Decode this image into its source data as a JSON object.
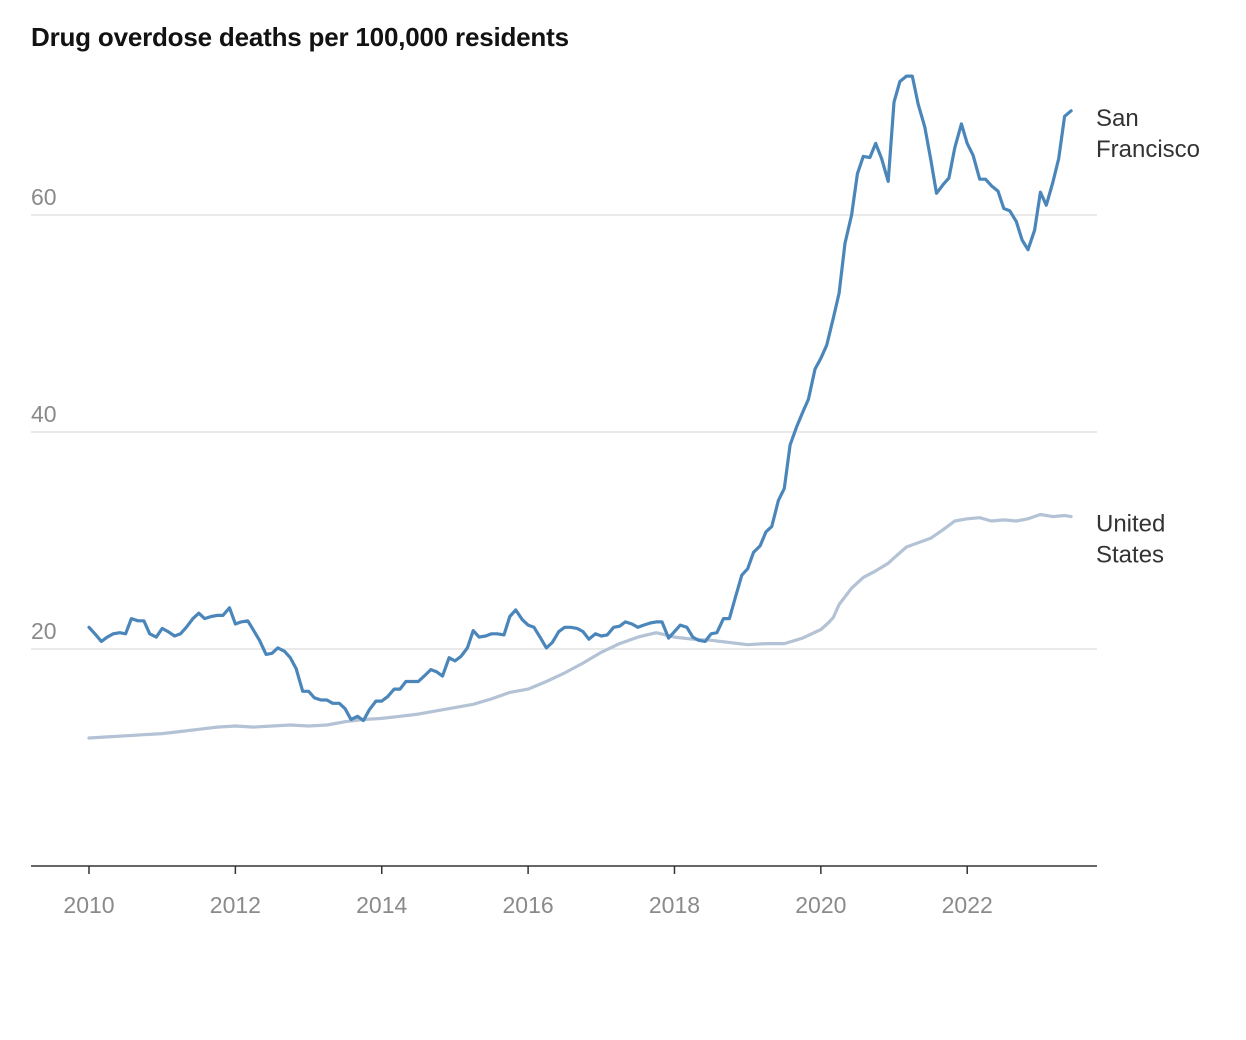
{
  "chart_data": {
    "type": "line",
    "title": "Drug overdose deaths per 100,000 residents",
    "xlabel": "",
    "ylabel": "",
    "xlim": [
      2010,
      2023.5
    ],
    "ylim": [
      0,
      70
    ],
    "x_ticks": [
      2010,
      2012,
      2014,
      2016,
      2018,
      2020,
      2022
    ],
    "y_ticks": [
      20,
      40,
      60
    ],
    "grid": true,
    "series": [
      {
        "name": "San Francisco",
        "label_lines": [
          "San",
          "Francisco"
        ],
        "color": "#4a86ba",
        "points": [
          [
            2010.0,
            22.0
          ],
          [
            2010.08,
            21.4
          ],
          [
            2010.17,
            20.7
          ],
          [
            2010.25,
            21.1
          ],
          [
            2010.33,
            21.4
          ],
          [
            2010.42,
            21.5
          ],
          [
            2010.5,
            21.4
          ],
          [
            2010.58,
            22.8
          ],
          [
            2010.67,
            22.6
          ],
          [
            2010.75,
            22.6
          ],
          [
            2010.83,
            21.4
          ],
          [
            2010.92,
            21.1
          ],
          [
            2011.0,
            21.9
          ],
          [
            2011.08,
            21.6
          ],
          [
            2011.17,
            21.2
          ],
          [
            2011.25,
            21.4
          ],
          [
            2011.33,
            22.0
          ],
          [
            2011.42,
            22.8
          ],
          [
            2011.5,
            23.3
          ],
          [
            2011.58,
            22.8
          ],
          [
            2011.67,
            23.0
          ],
          [
            2011.75,
            23.1
          ],
          [
            2011.83,
            23.1
          ],
          [
            2011.92,
            23.8
          ],
          [
            2012.0,
            22.3
          ],
          [
            2012.08,
            22.5
          ],
          [
            2012.17,
            22.6
          ],
          [
            2012.25,
            21.7
          ],
          [
            2012.33,
            20.8
          ],
          [
            2012.42,
            19.5
          ],
          [
            2012.5,
            19.6
          ],
          [
            2012.58,
            20.1
          ],
          [
            2012.67,
            19.8
          ],
          [
            2012.75,
            19.2
          ],
          [
            2012.83,
            18.2
          ],
          [
            2012.92,
            16.1
          ],
          [
            2013.0,
            16.1
          ],
          [
            2013.08,
            15.5
          ],
          [
            2013.17,
            15.3
          ],
          [
            2013.25,
            15.3
          ],
          [
            2013.33,
            15.0
          ],
          [
            2013.42,
            15.0
          ],
          [
            2013.5,
            14.5
          ],
          [
            2013.58,
            13.5
          ],
          [
            2013.67,
            13.8
          ],
          [
            2013.75,
            13.4
          ],
          [
            2013.83,
            14.4
          ],
          [
            2013.92,
            15.2
          ],
          [
            2014.0,
            15.2
          ],
          [
            2014.08,
            15.6
          ],
          [
            2014.17,
            16.3
          ],
          [
            2014.25,
            16.3
          ],
          [
            2014.33,
            17.0
          ],
          [
            2014.42,
            17.0
          ],
          [
            2014.5,
            17.0
          ],
          [
            2014.58,
            17.5
          ],
          [
            2014.67,
            18.1
          ],
          [
            2014.75,
            17.9
          ],
          [
            2014.83,
            17.5
          ],
          [
            2014.92,
            19.2
          ],
          [
            2015.0,
            18.9
          ],
          [
            2015.08,
            19.3
          ],
          [
            2015.17,
            20.1
          ],
          [
            2015.25,
            21.7
          ],
          [
            2015.33,
            21.1
          ],
          [
            2015.42,
            21.2
          ],
          [
            2015.5,
            21.4
          ],
          [
            2015.58,
            21.4
          ],
          [
            2015.67,
            21.3
          ],
          [
            2015.75,
            23.0
          ],
          [
            2015.83,
            23.6
          ],
          [
            2015.92,
            22.7
          ],
          [
            2016.0,
            22.2
          ],
          [
            2016.08,
            22.0
          ],
          [
            2016.17,
            21.0
          ],
          [
            2016.25,
            20.1
          ],
          [
            2016.33,
            20.6
          ],
          [
            2016.42,
            21.6
          ],
          [
            2016.5,
            22.0
          ],
          [
            2016.58,
            22.0
          ],
          [
            2016.67,
            21.9
          ],
          [
            2016.75,
            21.6
          ],
          [
            2016.83,
            20.9
          ],
          [
            2016.92,
            21.4
          ],
          [
            2017.0,
            21.2
          ],
          [
            2017.08,
            21.3
          ],
          [
            2017.17,
            22.0
          ],
          [
            2017.25,
            22.1
          ],
          [
            2017.33,
            22.5
          ],
          [
            2017.42,
            22.3
          ],
          [
            2017.5,
            22.0
          ],
          [
            2017.58,
            22.2
          ],
          [
            2017.67,
            22.4
          ],
          [
            2017.75,
            22.5
          ],
          [
            2017.83,
            22.5
          ],
          [
            2017.92,
            21.0
          ],
          [
            2018.0,
            21.6
          ],
          [
            2018.08,
            22.2
          ],
          [
            2018.17,
            22.0
          ],
          [
            2018.25,
            21.1
          ],
          [
            2018.33,
            20.8
          ],
          [
            2018.42,
            20.7
          ],
          [
            2018.5,
            21.4
          ],
          [
            2018.58,
            21.5
          ],
          [
            2018.67,
            22.8
          ],
          [
            2018.75,
            22.8
          ],
          [
            2018.83,
            24.7
          ],
          [
            2018.92,
            26.8
          ],
          [
            2019.0,
            27.4
          ],
          [
            2019.08,
            28.9
          ],
          [
            2019.17,
            29.5
          ],
          [
            2019.25,
            30.8
          ],
          [
            2019.33,
            31.3
          ],
          [
            2019.42,
            33.7
          ],
          [
            2019.5,
            34.8
          ],
          [
            2019.58,
            38.8
          ],
          [
            2019.67,
            40.5
          ],
          [
            2019.75,
            41.8
          ],
          [
            2019.83,
            43.0
          ],
          [
            2019.92,
            45.8
          ],
          [
            2020.0,
            46.8
          ],
          [
            2020.08,
            48.0
          ],
          [
            2020.17,
            50.5
          ],
          [
            2020.25,
            52.8
          ],
          [
            2020.33,
            57.4
          ],
          [
            2020.42,
            60.0
          ],
          [
            2020.5,
            63.8
          ],
          [
            2020.58,
            65.4
          ],
          [
            2020.67,
            65.3
          ],
          [
            2020.75,
            66.6
          ],
          [
            2020.83,
            65.2
          ],
          [
            2020.92,
            63.1
          ],
          [
            2021.0,
            70.4
          ],
          [
            2021.08,
            72.3
          ],
          [
            2021.17,
            72.8
          ],
          [
            2021.25,
            72.8
          ],
          [
            2021.33,
            70.2
          ],
          [
            2021.42,
            68.1
          ],
          [
            2021.5,
            65.2
          ],
          [
            2021.58,
            62.0
          ],
          [
            2021.67,
            62.8
          ],
          [
            2021.75,
            63.4
          ],
          [
            2021.83,
            66.2
          ],
          [
            2021.92,
            68.4
          ],
          [
            2022.0,
            66.6
          ],
          [
            2022.08,
            65.5
          ],
          [
            2022.17,
            63.3
          ],
          [
            2022.25,
            63.3
          ],
          [
            2022.33,
            62.7
          ],
          [
            2022.42,
            62.2
          ],
          [
            2022.5,
            60.6
          ],
          [
            2022.58,
            60.4
          ],
          [
            2022.67,
            59.4
          ],
          [
            2022.75,
            57.7
          ],
          [
            2022.83,
            56.8
          ],
          [
            2022.92,
            58.6
          ],
          [
            2023.0,
            62.1
          ],
          [
            2023.08,
            60.9
          ],
          [
            2023.17,
            63.0
          ],
          [
            2023.25,
            65.2
          ],
          [
            2023.33,
            69.1
          ],
          [
            2023.42,
            69.6
          ]
        ]
      },
      {
        "name": "United States",
        "label_lines": [
          "United",
          "States"
        ],
        "color": "#b3c2d4",
        "points": [
          [
            2010.0,
            11.8
          ],
          [
            2010.25,
            11.9
          ],
          [
            2010.5,
            12.0
          ],
          [
            2010.75,
            12.1
          ],
          [
            2011.0,
            12.2
          ],
          [
            2011.25,
            12.4
          ],
          [
            2011.5,
            12.6
          ],
          [
            2011.75,
            12.8
          ],
          [
            2012.0,
            12.9
          ],
          [
            2012.25,
            12.8
          ],
          [
            2012.5,
            12.9
          ],
          [
            2012.75,
            13.0
          ],
          [
            2013.0,
            12.9
          ],
          [
            2013.25,
            13.0
          ],
          [
            2013.5,
            13.3
          ],
          [
            2013.75,
            13.5
          ],
          [
            2014.0,
            13.6
          ],
          [
            2014.25,
            13.8
          ],
          [
            2014.5,
            14.0
          ],
          [
            2014.75,
            14.3
          ],
          [
            2015.0,
            14.6
          ],
          [
            2015.25,
            14.9
          ],
          [
            2015.5,
            15.4
          ],
          [
            2015.75,
            16.0
          ],
          [
            2016.0,
            16.3
          ],
          [
            2016.25,
            17.0
          ],
          [
            2016.5,
            17.8
          ],
          [
            2016.75,
            18.7
          ],
          [
            2017.0,
            19.7
          ],
          [
            2017.25,
            20.5
          ],
          [
            2017.5,
            21.1
          ],
          [
            2017.75,
            21.5
          ],
          [
            2018.0,
            21.1
          ],
          [
            2018.25,
            20.9
          ],
          [
            2018.5,
            20.8
          ],
          [
            2018.75,
            20.6
          ],
          [
            2019.0,
            20.4
          ],
          [
            2019.25,
            20.5
          ],
          [
            2019.5,
            20.5
          ],
          [
            2019.75,
            21.0
          ],
          [
            2020.0,
            21.8
          ],
          [
            2020.1,
            22.4
          ],
          [
            2020.17,
            22.9
          ],
          [
            2020.25,
            24.1
          ],
          [
            2020.42,
            25.6
          ],
          [
            2020.58,
            26.6
          ],
          [
            2020.75,
            27.2
          ],
          [
            2020.92,
            27.9
          ],
          [
            2021.0,
            28.4
          ],
          [
            2021.17,
            29.4
          ],
          [
            2021.33,
            29.8
          ],
          [
            2021.5,
            30.2
          ],
          [
            2021.67,
            31.0
          ],
          [
            2021.83,
            31.8
          ],
          [
            2022.0,
            32.0
          ],
          [
            2022.17,
            32.1
          ],
          [
            2022.33,
            31.8
          ],
          [
            2022.5,
            31.9
          ],
          [
            2022.67,
            31.8
          ],
          [
            2022.83,
            32.0
          ],
          [
            2023.0,
            32.4
          ],
          [
            2023.17,
            32.2
          ],
          [
            2023.33,
            32.3
          ],
          [
            2023.42,
            32.2
          ]
        ]
      }
    ]
  }
}
